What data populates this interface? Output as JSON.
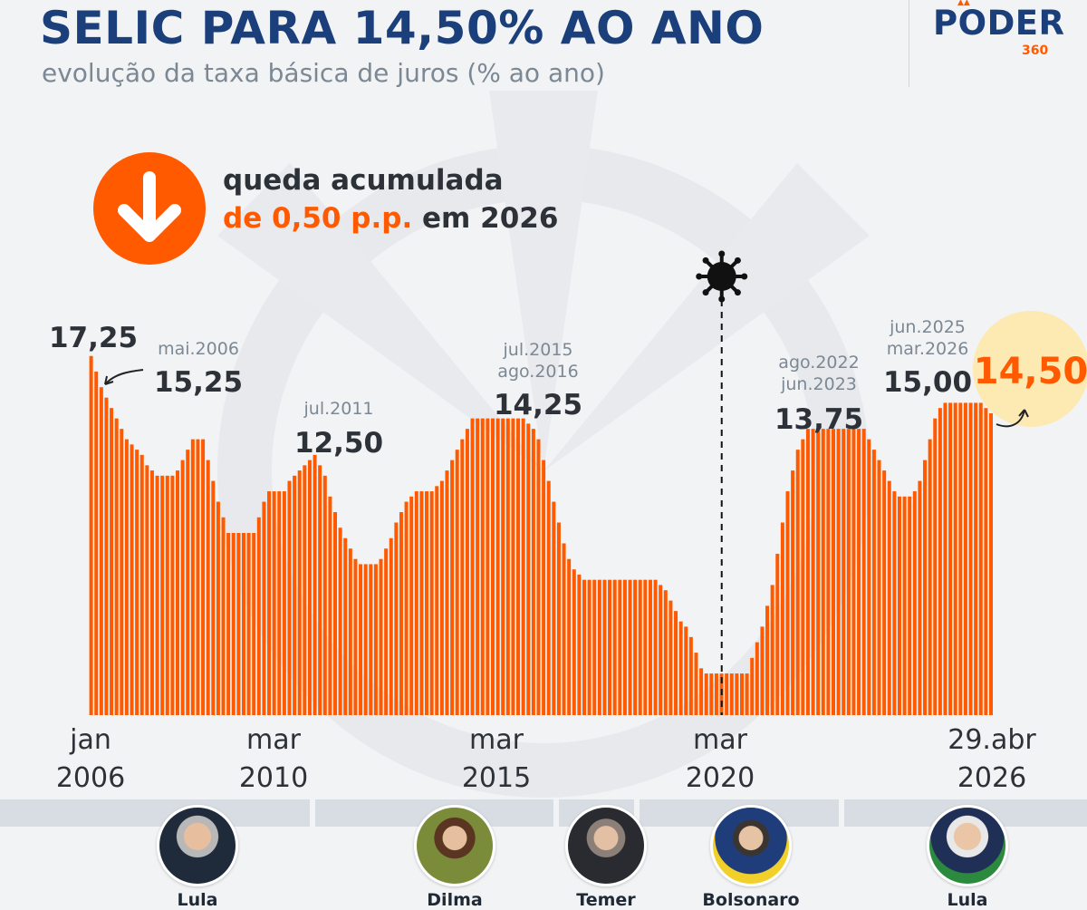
{
  "header": {
    "title": "SELIC PARA 14,50% AO ANO",
    "subtitle": "evolução da taxa básica de juros (% ao ano)"
  },
  "brand": {
    "name": "PODER",
    "number": "360"
  },
  "callout": {
    "icon": "arrow-down-icon",
    "line1": "queda acumulada",
    "highlight": "de 0,50 p.p.",
    "rest": " em 2026"
  },
  "colors": {
    "accent": "#ff5a00",
    "title": "#1b3f7a",
    "highlight_bg": "#fde9b2",
    "muted": "#7c8894",
    "dark": "#2d3138"
  },
  "chart_data": {
    "type": "bar",
    "title": "",
    "xlabel": "",
    "ylabel": "",
    "ylim": [
      0,
      17.5
    ],
    "grid": false,
    "values": [
      17.25,
      16.5,
      15.75,
      15.25,
      14.75,
      14.25,
      13.75,
      13.25,
      13,
      12.75,
      12.5,
      12,
      11.75,
      11.5,
      11.5,
      11.5,
      11.5,
      11.75,
      12.25,
      12.75,
      13.25,
      13.25,
      13.25,
      12.25,
      11.25,
      10.25,
      9.5,
      8.75,
      8.75,
      8.75,
      8.75,
      8.75,
      8.75,
      9.5,
      10.25,
      10.75,
      10.75,
      10.75,
      10.75,
      11.25,
      11.5,
      11.75,
      12,
      12.25,
      12.5,
      12,
      11.5,
      10.5,
      9.75,
      9,
      8.5,
      8,
      7.5,
      7.25,
      7.25,
      7.25,
      7.25,
      7.5,
      8,
      8.5,
      9.25,
      9.75,
      10.25,
      10.5,
      10.75,
      10.75,
      10.75,
      10.75,
      11,
      11.25,
      11.75,
      12.25,
      12.75,
      13.25,
      13.75,
      14.25,
      14.25,
      14.25,
      14.25,
      14.25,
      14.25,
      14.25,
      14.25,
      14.25,
      14.25,
      14.25,
      14,
      13.75,
      13.25,
      12.25,
      11.25,
      10.25,
      9.25,
      8.25,
      7.5,
      7,
      6.75,
      6.5,
      6.5,
      6.5,
      6.5,
      6.5,
      6.5,
      6.5,
      6.5,
      6.5,
      6.5,
      6.5,
      6.5,
      6.5,
      6.5,
      6.5,
      6.25,
      6,
      5.5,
      5,
      4.5,
      4.25,
      3.75,
      3,
      2.25,
      2,
      2,
      2,
      2,
      2,
      2,
      2,
      2,
      2,
      2.75,
      3.5,
      4.25,
      5.25,
      6.25,
      7.75,
      9.25,
      10.75,
      11.75,
      12.75,
      13.25,
      13.75,
      13.75,
      13.75,
      13.75,
      13.75,
      13.75,
      13.75,
      13.75,
      13.75,
      13.75,
      13.75,
      13.75,
      13.25,
      12.75,
      12.25,
      11.75,
      11.25,
      10.75,
      10.5,
      10.5,
      10.5,
      10.75,
      11.25,
      12.25,
      13.25,
      14.25,
      14.75,
      15,
      15,
      15,
      15,
      15,
      15,
      15,
      15,
      14.75,
      14.5
    ],
    "xlabels": [
      {
        "line1": "jan",
        "line2": "2006"
      },
      {
        "line1": "mar",
        "line2": "2010"
      },
      {
        "line1": "mar",
        "line2": "2015"
      },
      {
        "line1": "mar",
        "line2": "2020"
      },
      {
        "line1": "29.abr",
        "line2": "2026"
      }
    ],
    "annotations": [
      {
        "value": "17,25"
      },
      {
        "date": "mai.2006",
        "value": "15,25"
      },
      {
        "date": "jul.2011",
        "value": "12,50"
      },
      {
        "date": "jul.2015\nago.2016",
        "value": "14,25"
      },
      {
        "date": "ago.2022\njun.2023",
        "value": "13,75"
      },
      {
        "date": "jun.2025\nmar.2026",
        "value": "15,00"
      },
      {
        "value": "14,50"
      }
    ],
    "covid_marker": {
      "icon": "virus-icon",
      "label": "mar 2020"
    }
  },
  "timeline": {
    "presidents": [
      {
        "name": "Lula"
      },
      {
        "name": "Dilma"
      },
      {
        "name": "Temer"
      },
      {
        "name": "Bolsonaro"
      },
      {
        "name": "Lula"
      }
    ]
  }
}
